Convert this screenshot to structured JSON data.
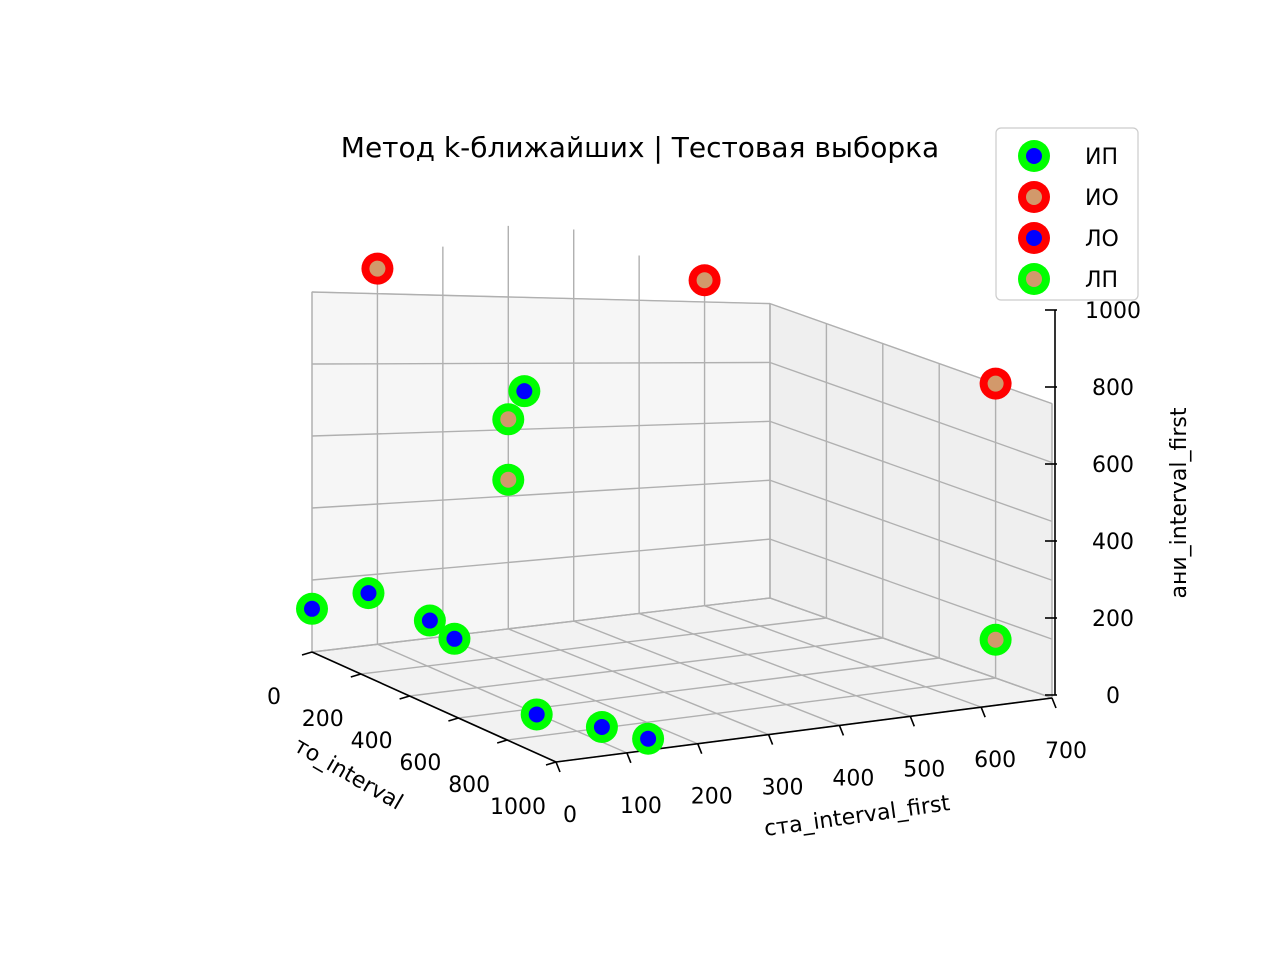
{
  "chart_data": {
    "type": "scatter",
    "title": "Метод k-ближайших | Тестовая выборка",
    "xlabel": "то_interval",
    "ylabel": "ста_interval_first",
    "zlabel": "ани_interval_first",
    "xlim": [
      0,
      1000
    ],
    "ylim": [
      0,
      700
    ],
    "zlim": [
      0,
      1000
    ],
    "x_ticks": [
      "0",
      "200",
      "400",
      "600",
      "800",
      "1000"
    ],
    "y_ticks": [
      "0",
      "100",
      "200",
      "300",
      "400",
      "500",
      "600",
      "700"
    ],
    "z_ticks": [
      "0",
      "200",
      "400",
      "600",
      "800",
      "1000"
    ],
    "grid": true,
    "legend_position": "top-right",
    "series": [
      {
        "name": "ИП",
        "edge_color": "#00ff00",
        "face_color": "#0000ff",
        "points": [
          {
            "x": 0,
            "y": 0,
            "z": 120
          },
          {
            "x": 150,
            "y": 30,
            "z": 200
          },
          {
            "x": 400,
            "y": 30,
            "z": 200
          },
          {
            "x": 500,
            "y": 30,
            "z": 180
          },
          {
            "x": 750,
            "y": 60,
            "z": 40
          },
          {
            "x": 900,
            "y": 100,
            "z": 40
          },
          {
            "x": 1000,
            "y": 130,
            "z": 30
          },
          {
            "x": 700,
            "y": 60,
            "z": 900
          }
        ]
      },
      {
        "name": "ИО",
        "edge_color": "#ff0000",
        "face_color": "#d2996b",
        "points": [
          {
            "x": 0,
            "y": 600,
            "z": 1000
          },
          {
            "x": 800,
            "y": 700,
            "z": 1000
          },
          {
            "x": 0,
            "y": 100,
            "z": 1000
          }
        ]
      },
      {
        "name": "ЛО",
        "edge_color": "#ff0000",
        "face_color": "#0000ff",
        "points": []
      },
      {
        "name": "ЛП",
        "edge_color": "#00ff00",
        "face_color": "#d2996b",
        "points": [
          {
            "x": 0,
            "y": 300,
            "z": 520
          },
          {
            "x": 0,
            "y": 300,
            "z": 370
          },
          {
            "x": 800,
            "y": 700,
            "z": 130
          }
        ]
      }
    ]
  }
}
